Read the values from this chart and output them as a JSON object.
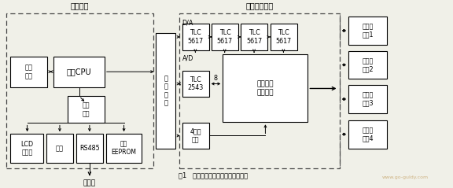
{
  "title_left": "主控模塊",
  "title_right": "過程處理模塊",
  "fig_caption": "圖1   化成充放電控制器的硬件結構圖",
  "bg_color": "#f0f0e8",
  "box_facecolor": "white",
  "box_edgecolor": "black",
  "text_color": "black",
  "watermark": "www.go-guldy.com"
}
